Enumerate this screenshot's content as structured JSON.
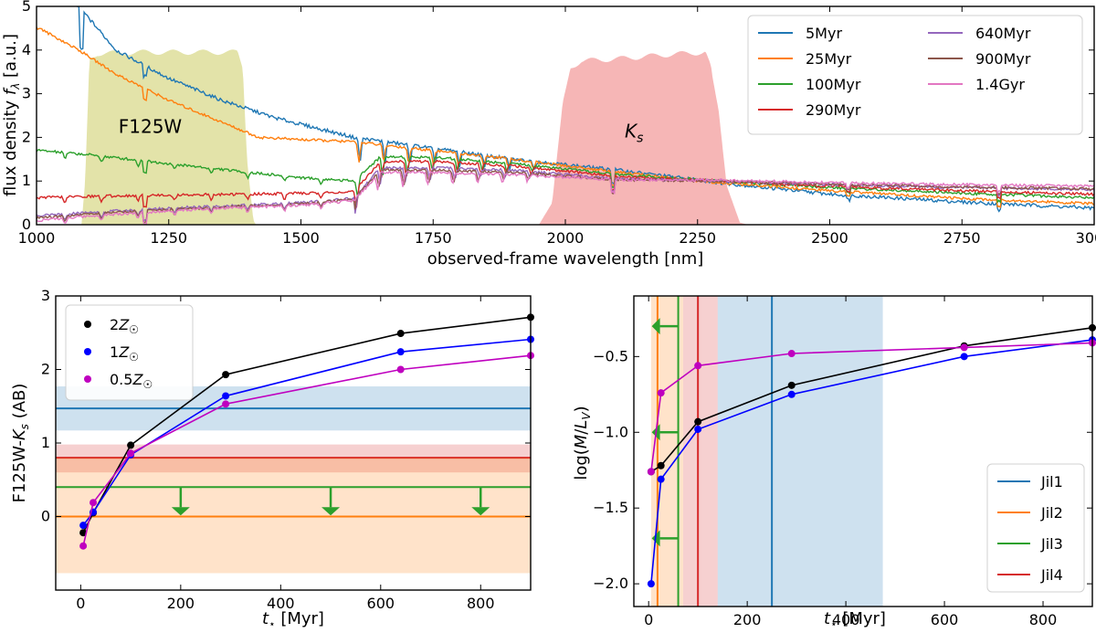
{
  "chart_data": [
    {
      "id": "top",
      "type": "line",
      "title": "",
      "xlabel": "observed-frame wavelength [nm]",
      "ylabel": "flux density f_λ [a.u.]",
      "xlim": [
        1000,
        3000
      ],
      "ylim": [
        0,
        5
      ],
      "xticks": [
        1000,
        1250,
        1500,
        1750,
        2000,
        2250,
        2500,
        2750,
        3000
      ],
      "yticks": [
        0,
        1,
        2,
        3,
        4,
        5
      ],
      "legend_position": "top-right",
      "filters": [
        {
          "name": "F125W",
          "label": "F125W",
          "color": "#dede9a",
          "points": [
            [
              1085,
              0
            ],
            [
              1092,
              1.0
            ],
            [
              1100,
              3.8
            ],
            [
              1115,
              3.92
            ],
            [
              1200,
              3.95
            ],
            [
              1300,
              3.95
            ],
            [
              1380,
              3.95
            ],
            [
              1390,
              3.6
            ],
            [
              1398,
              1.5
            ],
            [
              1410,
              0.1
            ],
            [
              1415,
              0
            ]
          ],
          "label_pos": [
            1215,
            2.1
          ]
        },
        {
          "name": "Ks",
          "label": "K_s",
          "color": "#f5a9a9",
          "points": [
            [
              1950,
              0
            ],
            [
              1975,
              0.5
            ],
            [
              1995,
              2.8
            ],
            [
              2010,
              3.6
            ],
            [
              2030,
              3.75
            ],
            [
              2100,
              3.8
            ],
            [
              2200,
              3.9
            ],
            [
              2265,
              3.95
            ],
            [
              2275,
              3.6
            ],
            [
              2290,
              2.6
            ],
            [
              2305,
              0.9
            ],
            [
              2330,
              0.05
            ],
            [
              2345,
              0
            ]
          ],
          "label_pos": [
            2130,
            2.0
          ]
        }
      ],
      "series": [
        {
          "name": "5Myr",
          "color": "#1f77b4",
          "anchors": [
            [
              1005,
              5.3
            ],
            [
              1080,
              5.0
            ],
            [
              1150,
              4.0
            ],
            [
              1250,
              3.35
            ],
            [
              1350,
              2.85
            ],
            [
              1450,
              2.45
            ],
            [
              1550,
              2.15
            ],
            [
              1600,
              2.0
            ],
            [
              1750,
              1.75
            ],
            [
              1900,
              1.5
            ],
            [
              2100,
              1.25
            ],
            [
              2300,
              0.95
            ],
            [
              2500,
              0.7
            ],
            [
              2750,
              0.52
            ],
            [
              3000,
              0.38
            ]
          ],
          "break": 1600,
          "abs": 0.55,
          "noise": 0.04
        },
        {
          "name": "25Myr",
          "color": "#ff7f0e",
          "anchors": [
            [
              1005,
              4.5
            ],
            [
              1080,
              4.0
            ],
            [
              1150,
              3.45
            ],
            [
              1250,
              2.85
            ],
            [
              1350,
              2.35
            ],
            [
              1420,
              2.0
            ],
            [
              1500,
              1.95
            ],
            [
              1600,
              1.9
            ],
            [
              1750,
              1.7
            ],
            [
              1900,
              1.5
            ],
            [
              2100,
              1.2
            ],
            [
              2300,
              0.95
            ],
            [
              2500,
              0.78
            ],
            [
              2750,
              0.6
            ],
            [
              3000,
              0.48
            ]
          ],
          "break": 1600,
          "abs": 0.45,
          "noise": 0.03
        },
        {
          "name": "100Myr",
          "color": "#2ca02c",
          "anchors": [
            [
              1005,
              1.7
            ],
            [
              1100,
              1.6
            ],
            [
              1250,
              1.4
            ],
            [
              1400,
              1.2
            ],
            [
              1500,
              1.08
            ],
            [
              1600,
              1.0
            ],
            [
              1650,
              1.55
            ],
            [
              1750,
              1.55
            ],
            [
              1900,
              1.4
            ],
            [
              2100,
              1.15
            ],
            [
              2300,
              1.0
            ],
            [
              2500,
              0.85
            ],
            [
              2750,
              0.72
            ],
            [
              3000,
              0.62
            ]
          ],
          "break": 1600,
          "abs": 0.45,
          "noise": 0.03
        },
        {
          "name": "290Myr",
          "color": "#d62728",
          "anchors": [
            [
              1005,
              0.62
            ],
            [
              1100,
              0.65
            ],
            [
              1250,
              0.68
            ],
            [
              1400,
              0.7
            ],
            [
              1500,
              0.72
            ],
            [
              1600,
              0.75
            ],
            [
              1650,
              1.45
            ],
            [
              1750,
              1.45
            ],
            [
              1900,
              1.35
            ],
            [
              2100,
              1.1
            ],
            [
              2300,
              1.0
            ],
            [
              2500,
              0.88
            ],
            [
              2750,
              0.78
            ],
            [
              3000,
              0.7
            ]
          ],
          "break": 1600,
          "abs": 0.45,
          "noise": 0.03
        },
        {
          "name": "640Myr",
          "color": "#9467bd",
          "anchors": [
            [
              1005,
              0.2
            ],
            [
              1100,
              0.28
            ],
            [
              1250,
              0.38
            ],
            [
              1400,
              0.45
            ],
            [
              1500,
              0.5
            ],
            [
              1600,
              0.6
            ],
            [
              1650,
              1.3
            ],
            [
              1750,
              1.3
            ],
            [
              1900,
              1.25
            ],
            [
              2100,
              1.05
            ],
            [
              2300,
              1.0
            ],
            [
              2500,
              0.92
            ],
            [
              2750,
              0.85
            ],
            [
              3000,
              0.8
            ]
          ],
          "break": 1600,
          "abs": 0.4,
          "noise": 0.03
        },
        {
          "name": "900Myr",
          "color": "#8c564b",
          "anchors": [
            [
              1005,
              0.15
            ],
            [
              1100,
              0.25
            ],
            [
              1250,
              0.35
            ],
            [
              1400,
              0.43
            ],
            [
              1500,
              0.48
            ],
            [
              1600,
              0.58
            ],
            [
              1650,
              1.25
            ],
            [
              1750,
              1.25
            ],
            [
              1900,
              1.2
            ],
            [
              2100,
              1.03
            ],
            [
              2300,
              1.0
            ],
            [
              2500,
              0.93
            ],
            [
              2750,
              0.87
            ],
            [
              3000,
              0.82
            ]
          ],
          "break": 1600,
          "abs": 0.4,
          "noise": 0.03
        },
        {
          "name": "1.4Gyr",
          "color": "#e377c2",
          "anchors": [
            [
              1005,
              0.1
            ],
            [
              1100,
              0.2
            ],
            [
              1250,
              0.32
            ],
            [
              1400,
              0.4
            ],
            [
              1500,
              0.45
            ],
            [
              1600,
              0.55
            ],
            [
              1650,
              1.2
            ],
            [
              1750,
              1.2
            ],
            [
              1900,
              1.15
            ],
            [
              2100,
              1.03
            ],
            [
              2300,
              1.02
            ],
            [
              2500,
              0.96
            ],
            [
              2750,
              0.92
            ],
            [
              3000,
              0.88
            ]
          ],
          "break": 1600,
          "abs": 0.4,
          "noise": 0.03
        }
      ]
    },
    {
      "id": "bottom-left",
      "type": "line",
      "xlabel": "t_⋆ [Myr]",
      "ylabel": "F125W-K_s (AB)",
      "xlim": [
        -50,
        900
      ],
      "ylim": [
        -1,
        3
      ],
      "xticks": [
        0,
        200,
        400,
        600,
        800
      ],
      "yticks": [
        0,
        1,
        2,
        3
      ],
      "legend_position": "upper-left",
      "series": [
        {
          "name": "2Z☉",
          "label_main": "2Z",
          "label_sub": "☉",
          "color": "#000000",
          "x": [
            5,
            25,
            100,
            290,
            640,
            900
          ],
          "y": [
            -0.22,
            0.05,
            0.97,
            1.93,
            2.49,
            2.71
          ]
        },
        {
          "name": "1Z☉",
          "label_main": "1Z",
          "label_sub": "☉",
          "color": "#0000ff",
          "x": [
            5,
            25,
            100,
            290,
            640,
            900
          ],
          "y": [
            -0.12,
            0.06,
            0.84,
            1.64,
            2.24,
            2.41
          ]
        },
        {
          "name": "0.5Z☉",
          "label_main": "0.5Z",
          "label_sub": "☉",
          "color": "#bf00bf",
          "x": [
            5,
            25,
            100,
            290,
            640,
            900
          ],
          "y": [
            -0.4,
            0.19,
            0.86,
            1.53,
            2.0,
            2.19
          ]
        }
      ],
      "bands": [
        {
          "name": "Jil1",
          "color": "#1f77b4",
          "value": 1.47,
          "low": 1.17,
          "high": 1.77
        },
        {
          "name": "Jil4",
          "color": "#d62728",
          "value": 0.8,
          "low": 0.6,
          "high": 0.98
        },
        {
          "name": "Jil2",
          "color": "#ff7f0e",
          "value": 0.0,
          "low": -0.77,
          "high": 0.8
        }
      ],
      "upper_limit": {
        "name": "Jil3",
        "color": "#2ca02c",
        "value": 0.4,
        "arrow_x": [
          200,
          500,
          800
        ]
      }
    },
    {
      "id": "bottom-right",
      "type": "line",
      "xlabel": "t_⋆ [Myr]",
      "ylabel": "log(M/L_V)",
      "xlim": [
        -30,
        900
      ],
      "ylim": [
        -2.15,
        -0.1
      ],
      "xticks": [
        0,
        200,
        400,
        600,
        800
      ],
      "yticks": [
        -2.0,
        -1.5,
        -1.0,
        -0.5
      ],
      "ytick_labels": [
        "−2.0",
        "−1.5",
        "−1.0",
        "−0.5"
      ],
      "legend_position": "lower-right",
      "series": [
        {
          "name": "2Z☉",
          "color": "#000000",
          "x": [
            5,
            25,
            100,
            290,
            640,
            900
          ],
          "y": [
            -1.26,
            -1.22,
            -0.93,
            -0.69,
            -0.43,
            -0.31
          ]
        },
        {
          "name": "1Z☉",
          "color": "#0000ff",
          "x": [
            5,
            25,
            100,
            290,
            640,
            900
          ],
          "y": [
            -2.0,
            -1.31,
            -0.98,
            -0.75,
            -0.5,
            -0.39
          ]
        },
        {
          "name": "0.5Z☉",
          "color": "#bf00bf",
          "x": [
            5,
            25,
            100,
            290,
            640,
            900
          ],
          "y": [
            -1.26,
            -0.74,
            -0.56,
            -0.48,
            -0.44,
            -0.41
          ]
        }
      ],
      "age_bands": [
        {
          "name": "Jil1",
          "color": "#1f77b4",
          "value": 250,
          "low": 140,
          "high": 475
        },
        {
          "name": "Jil2",
          "color": "#ff7f0e",
          "value": 18,
          "low": 5,
          "high": 70
        },
        {
          "name": "Jil3",
          "color": "#2ca02c",
          "value": 60,
          "low": null,
          "high": null,
          "limit_arrows_y": [
            -0.3,
            -1.0,
            -1.7
          ]
        },
        {
          "name": "Jil4",
          "color": "#d62728",
          "value": 100,
          "low": 70,
          "high": 140
        }
      ],
      "legend": [
        "Jil1",
        "Jil2",
        "Jil3",
        "Jil4"
      ]
    }
  ]
}
